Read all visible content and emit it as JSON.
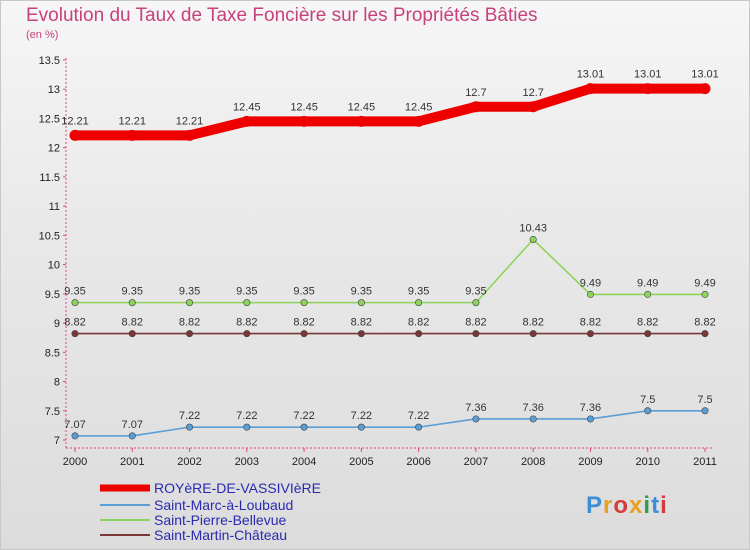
{
  "title": "Evolution du Taux de Taxe Foncière sur les Propriétés Bâties",
  "subtitle": "(en %)",
  "logo_text": "Proxiti",
  "chart_data": {
    "type": "line",
    "title": "Evolution du Taux de Taxe Foncière sur les Propriétés Bâties",
    "ylabel": "(en %)",
    "xlabel": "",
    "ylim": [
      7,
      13.5
    ],
    "yticks": [
      "7",
      "7.5",
      "8",
      "8.5",
      "9",
      "9.5",
      "10",
      "10.5",
      "11",
      "11.5",
      "12",
      "12.5",
      "13",
      "13.5"
    ],
    "categories": [
      "2000",
      "2001",
      "2002",
      "2003",
      "2004",
      "2005",
      "2006",
      "2007",
      "2008",
      "2009",
      "2010",
      "2011"
    ],
    "series": [
      {
        "name": "ROYèRE-DE-VASSIVIèRE",
        "color": "#ee0000",
        "bold": true,
        "values": [
          12.21,
          12.21,
          12.21,
          12.45,
          12.45,
          12.45,
          12.45,
          12.7,
          12.7,
          13.01,
          13.01,
          13.01
        ],
        "labels": [
          "12.21",
          "12.21",
          "12.21",
          "12.45",
          "12.45",
          "12.45",
          "12.45",
          "12.7",
          "12.7",
          "13.01",
          "13.01",
          "13.01"
        ]
      },
      {
        "name": "Saint-Marc-à-Loubaud",
        "color": "#5a9ed6",
        "bold": false,
        "values": [
          7.07,
          7.07,
          7.22,
          7.22,
          7.22,
          7.22,
          7.22,
          7.36,
          7.36,
          7.36,
          7.5,
          7.5
        ],
        "labels": [
          "7.07",
          "7.07",
          "7.22",
          "7.22",
          "7.22",
          "7.22",
          "7.22",
          "7.36",
          "7.36",
          "7.36",
          "7.5",
          "7.5"
        ]
      },
      {
        "name": "Saint-Pierre-Bellevue",
        "color": "#8fd45a",
        "bold": false,
        "values": [
          9.35,
          9.35,
          9.35,
          9.35,
          9.35,
          9.35,
          9.35,
          9.35,
          10.43,
          9.49,
          9.49,
          9.49
        ],
        "labels": [
          "9.35",
          "9.35",
          "9.35",
          "9.35",
          "9.35",
          "9.35",
          "9.35",
          "9.35",
          "10.43",
          "9.49",
          "9.49",
          "9.49"
        ]
      },
      {
        "name": "Saint-Martin-Château",
        "color": "#7b3636",
        "bold": false,
        "values": [
          8.82,
          8.82,
          8.82,
          8.82,
          8.82,
          8.82,
          8.82,
          8.82,
          8.82,
          8.82,
          8.82,
          8.82
        ],
        "labels": [
          "8.82",
          "8.82",
          "8.82",
          "8.82",
          "8.82",
          "8.82",
          "8.82",
          "8.82",
          "8.82",
          "8.82",
          "8.82",
          "8.82"
        ]
      }
    ],
    "legend_position": "bottom-left",
    "grid": false
  }
}
